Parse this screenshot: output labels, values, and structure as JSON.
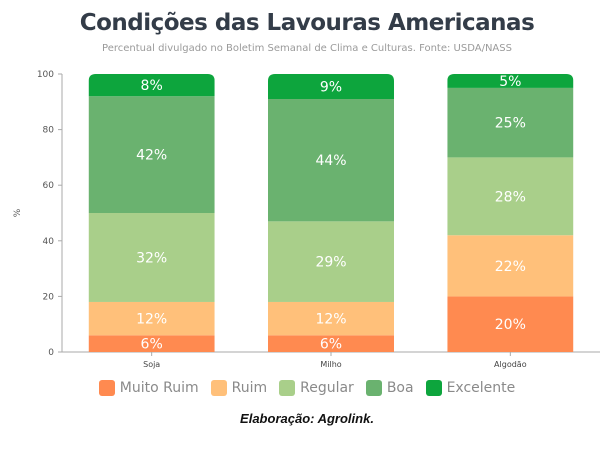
{
  "chart_data": {
    "type": "bar",
    "stacked": true,
    "title": "Condições das Lavouras Americanas",
    "subtitle": "Percentual divulgado no Boletim Semanal de Clima e Culturas. Fonte: USDA/NASS",
    "xlabel": "",
    "ylabel": "%",
    "ylim": [
      0,
      100
    ],
    "yticks": [
      0,
      20,
      40,
      60,
      80,
      100
    ],
    "grid": false,
    "legend_position": "bottom",
    "categories": [
      "Soja",
      "Milho",
      "Algodão"
    ],
    "series": [
      {
        "name": "Muito Ruim",
        "color": "#ff8a50",
        "values": [
          6,
          6,
          20
        ]
      },
      {
        "name": "Ruim",
        "color": "#ffc07a",
        "values": [
          12,
          12,
          22
        ]
      },
      {
        "name": "Regular",
        "color": "#a9cf8a",
        "values": [
          32,
          29,
          28
        ]
      },
      {
        "name": "Boa",
        "color": "#6ab26f",
        "values": [
          42,
          44,
          25
        ]
      },
      {
        "name": "Excelente",
        "color": "#0da53d",
        "values": [
          8,
          9,
          5
        ]
      }
    ],
    "value_suffix": "%"
  },
  "footer": "Elaboração: Agrolink."
}
